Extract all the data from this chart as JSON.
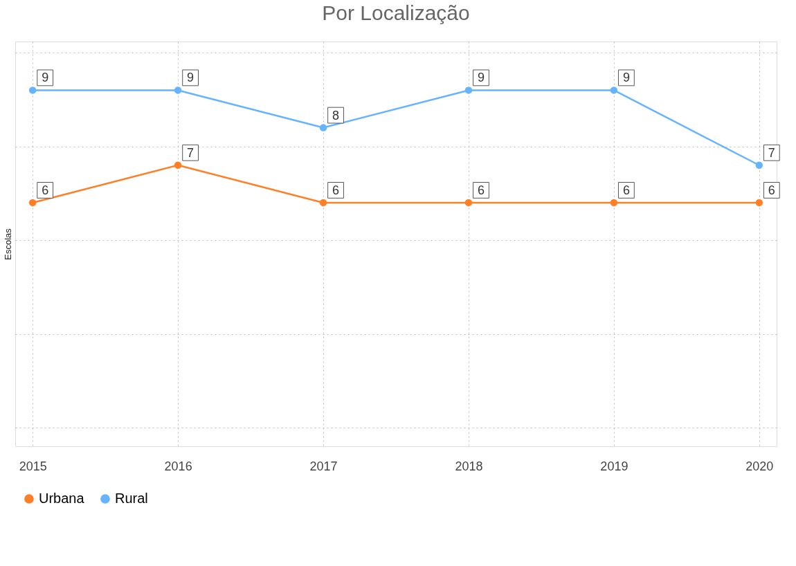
{
  "chart_data": {
    "type": "line",
    "title": "Por Localização",
    "ylabel": "Escolas",
    "categories": [
      "2015",
      "2016",
      "2017",
      "2018",
      "2019",
      "2020"
    ],
    "series": [
      {
        "name": "Urbana",
        "color": "#ff7f27",
        "values": [
          6,
          7,
          6,
          6,
          6,
          6
        ]
      },
      {
        "name": "Rural",
        "color": "#66b3ff",
        "values": [
          9,
          9,
          8,
          9,
          9,
          7
        ]
      }
    ],
    "ylim": [
      -0.5,
      10.3
    ],
    "yticks": [
      {
        "value": 0,
        "label": null
      },
      {
        "value": 2.5,
        "label": null
      },
      {
        "value": 5,
        "label": null
      },
      {
        "value": 7.5,
        "label": null
      },
      {
        "value": 10,
        "label": null
      }
    ],
    "tick_labels": "x",
    "grid": true,
    "legend": "bottom",
    "marker": "circle",
    "line_style": "solid",
    "data_labels": true
  }
}
